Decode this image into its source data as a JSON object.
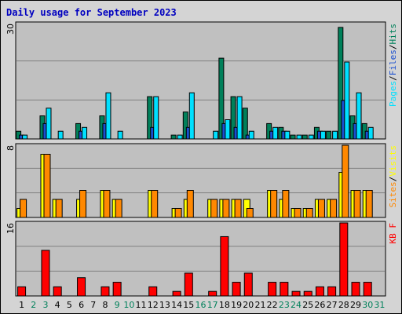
{
  "chart_data": {
    "type": "bar",
    "title": "Daily usage for September 2023",
    "categories": [
      "1",
      "2",
      "3",
      "4",
      "5",
      "6",
      "7",
      "8",
      "9",
      "10",
      "11",
      "12",
      "13",
      "14",
      "15",
      "16",
      "17",
      "18",
      "19",
      "20",
      "21",
      "22",
      "23",
      "24",
      "25",
      "26",
      "27",
      "28",
      "29",
      "30",
      "31"
    ],
    "weekend_days": [
      "2",
      "3",
      "9",
      "10",
      "16",
      "17",
      "23",
      "24",
      "30",
      "31"
    ],
    "colors": {
      "pages": "#00e0ff",
      "files": "#1a4fd0",
      "hits": "#00805a",
      "sites": "#ff8800",
      "visits": "#ffff00",
      "kbf": "#ff0000",
      "title": "#0000c0",
      "weekend": "#00805a",
      "weekday": "#000000",
      "panel_bg": "#c0c0c0",
      "frame_bg": "#d4d4d4"
    },
    "panels": [
      {
        "ymax_label": "30",
        "ymax": 30,
        "legend": [
          {
            "text": "Pages",
            "color": "#00e0ff"
          },
          {
            "text": "/",
            "color": "#000000"
          },
          {
            "text": "Files",
            "color": "#1a4fd0"
          },
          {
            "text": "/",
            "color": "#000000"
          },
          {
            "text": "Hits",
            "color": "#00805a"
          }
        ],
        "series": [
          {
            "name": "Hits",
            "color": "#00805a",
            "values": [
              2,
              0,
              6,
              0,
              0,
              4,
              0,
              6,
              0,
              0,
              0,
              11,
              0,
              1,
              7,
              0,
              0,
              21,
              11,
              8,
              0,
              4,
              3,
              1,
              1,
              3,
              2,
              29,
              6,
              4,
              0
            ]
          },
          {
            "name": "Files",
            "color": "#1a4fd0",
            "values": [
              1,
              0,
              4,
              0,
              0,
              2,
              0,
              4,
              0,
              0,
              0,
              3,
              0,
              0,
              3,
              0,
              0,
              4,
              3,
              1,
              0,
              2,
              2,
              0,
              0,
              2,
              0,
              10,
              4,
              2,
              0
            ]
          },
          {
            "name": "Pages",
            "color": "#00e0ff",
            "values": [
              1,
              0,
              8,
              2,
              0,
              3,
              0,
              12,
              2,
              0,
              0,
              11,
              0,
              1,
              12,
              0,
              2,
              5,
              11,
              2,
              0,
              3,
              2,
              1,
              1,
              2,
              2,
              20,
              12,
              3,
              0
            ]
          }
        ]
      },
      {
        "ymax_label": "8",
        "ymax": 8,
        "legend": [
          {
            "text": "Sites",
            "color": "#ff8800"
          },
          {
            "text": "/",
            "color": "#000000"
          },
          {
            "text": "Visits",
            "color": "#ffff00"
          }
        ],
        "series": [
          {
            "name": "Visits",
            "color": "#ffff00",
            "values": [
              1,
              0,
              7,
              2,
              0,
              2,
              0,
              3,
              2,
              0,
              0,
              3,
              0,
              1,
              2,
              0,
              2,
              2,
              2,
              2,
              0,
              3,
              2,
              1,
              1,
              2,
              2,
              5,
              3,
              3,
              0
            ]
          },
          {
            "name": "Sites",
            "color": "#ff8800",
            "values": [
              2,
              0,
              7,
              2,
              0,
              3,
              0,
              3,
              2,
              0,
              0,
              3,
              0,
              1,
              3,
              0,
              2,
              2,
              2,
              1,
              0,
              3,
              3,
              1,
              1,
              2,
              2,
              8,
              3,
              3,
              0
            ]
          }
        ]
      },
      {
        "ymax_label": "16",
        "ymax": 16,
        "legend": [
          {
            "text": "KB F",
            "color": "#ff0000"
          }
        ],
        "series": [
          {
            "name": "KB F",
            "color": "#ff0000",
            "values": [
              2,
              0,
              10,
              2,
              0,
              4,
              0,
              2,
              3,
              0,
              0,
              2,
              0,
              1,
              5,
              0,
              1,
              13,
              3,
              5,
              0,
              3,
              3,
              1,
              1,
              2,
              2,
              16,
              3,
              3,
              0
            ]
          }
        ]
      }
    ]
  }
}
